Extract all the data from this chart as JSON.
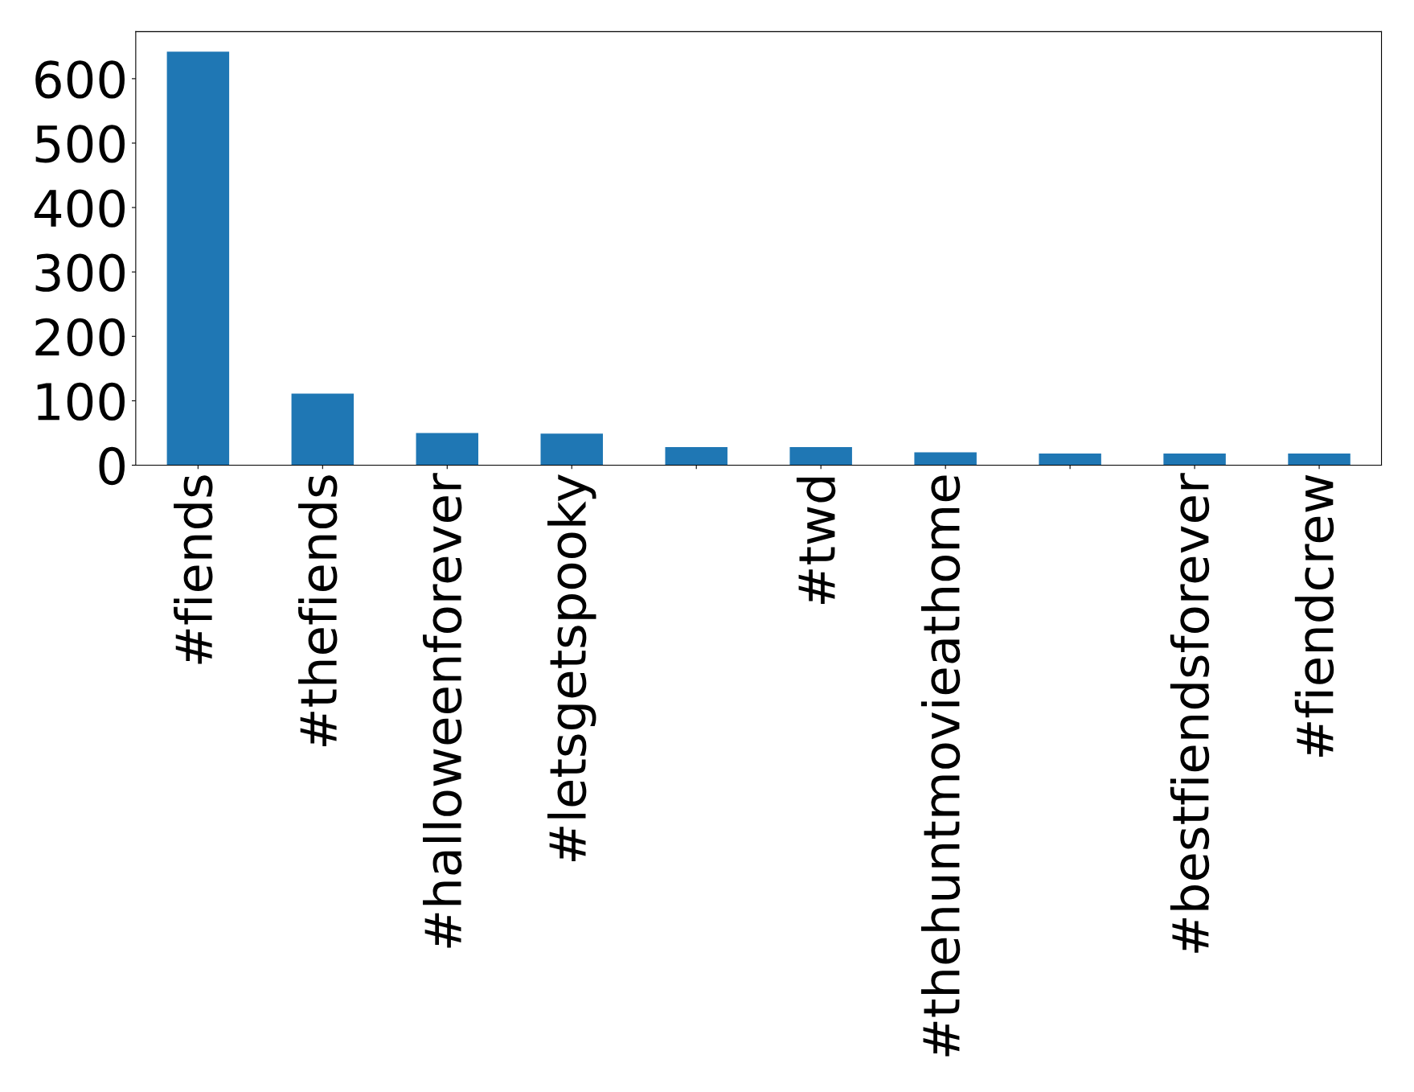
{
  "chart_data": {
    "type": "bar",
    "categories": [
      "#fiends",
      "#thefiends",
      "#halloweenforever",
      "#letsgetspooky",
      null,
      "#twd",
      "#thehuntmovieathome",
      null,
      "#bestfiendsforever",
      "#fiendcrew"
    ],
    "values": [
      642,
      111,
      50,
      49,
      28,
      28,
      20,
      18,
      18,
      18
    ],
    "color": "#1f77b4",
    "ylim": [
      0,
      673
    ],
    "yticks": [
      0,
      100,
      200,
      300,
      400,
      500,
      600
    ],
    "grid": false
  }
}
